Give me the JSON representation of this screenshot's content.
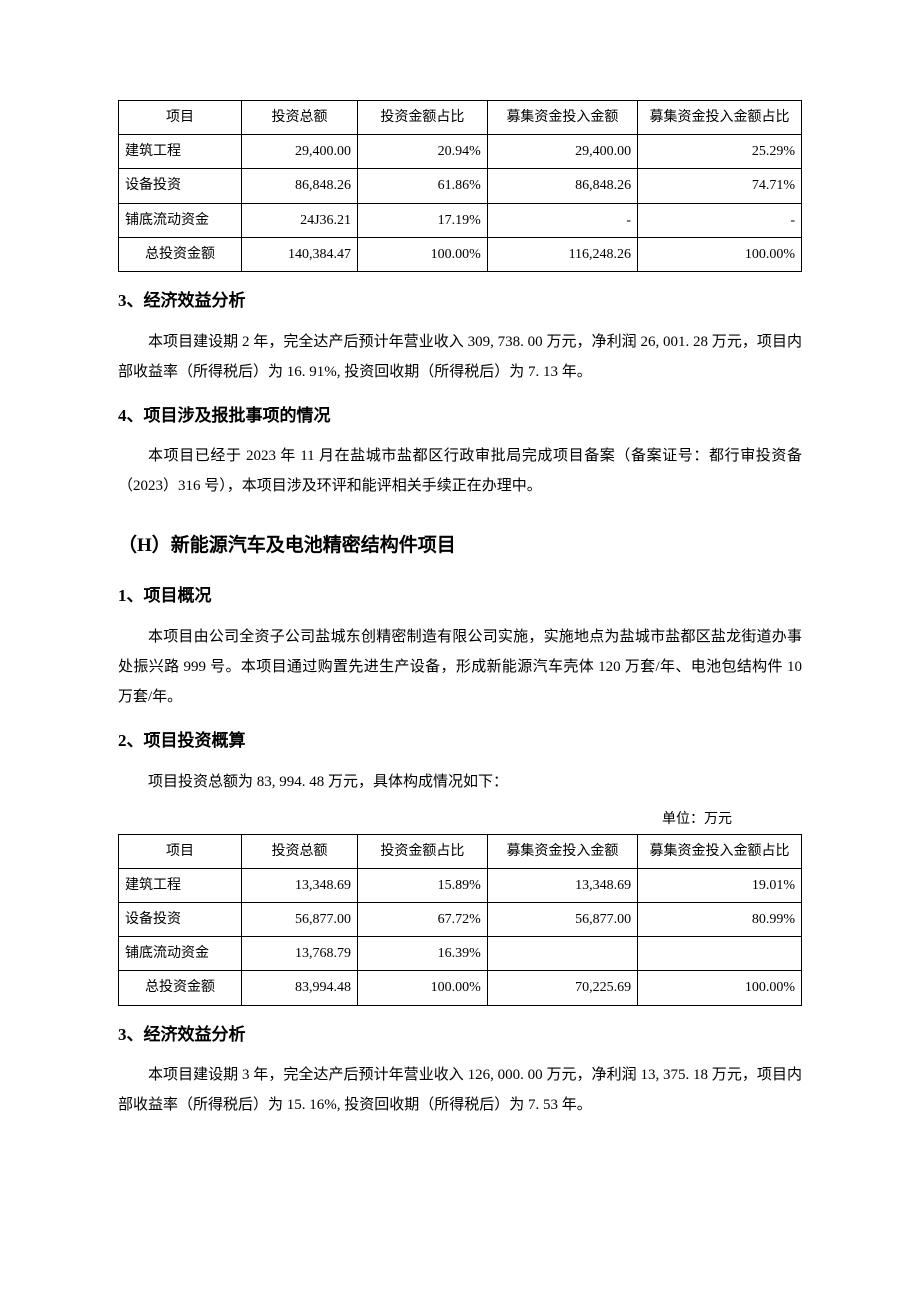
{
  "table1": {
    "headers": [
      "项目",
      "投资总额",
      "投资金额占比",
      "募集资金投入金额",
      "募集资金投入金额占比"
    ],
    "rows": [
      [
        "建筑工程",
        "29,400.00",
        "20.94%",
        "29,400.00",
        "25.29%"
      ],
      [
        "设备投资",
        "86,848.26",
        "61.86%",
        "86,848.26",
        "74.71%"
      ],
      [
        "铺底流动资金",
        "24J36.21",
        "17.19%",
        "-",
        "-"
      ],
      [
        "总投资金额",
        "140,384.47",
        "100.00%",
        "116,248.26",
        "100.00%"
      ]
    ]
  },
  "section3": {
    "title": "3、经济效益分析",
    "p1": "本项目建设期 2 年，完全达产后预计年营业收入 309, 738. 00 万元，净利润 26, 001. 28 万元，项目内部收益率（所得税后）为 16. 91%, 投资回收期（所得税后）为 7. 13 年。"
  },
  "section4": {
    "title": "4、项目涉及报批事项的情况",
    "p1": "本项目已经于 2023 年 11 月在盐城市盐都区行政审批局完成项目备案（备案证号：都行审投资备（2023）316 号），本项目涉及环评和能评相关手续正在办理中。"
  },
  "sectionH": {
    "title": "（H）新能源汽车及电池精密结构件项目"
  },
  "sectionH1": {
    "title": "1、项目概况",
    "p1": "本项目由公司全资子公司盐城东创精密制造有限公司实施，实施地点为盐城市盐都区盐龙街道办事处振兴路 999 号。本项目通过购置先进生产设备，形成新能源汽车壳体 120 万套/年、电池包结构件 10 万套/年。"
  },
  "sectionH2": {
    "title": "2、项目投资概算",
    "p1": "项目投资总额为 83, 994. 48 万元，具体构成情况如下：",
    "unit": "单位：万元"
  },
  "table2": {
    "headers": [
      "项目",
      "投资总额",
      "投资金额占比",
      "募集资金投入金额",
      "募集资金投入金额占比"
    ],
    "rows": [
      [
        "建筑工程",
        "13,348.69",
        "15.89%",
        "13,348.69",
        "19.01%"
      ],
      [
        "设备投资",
        "56,877.00",
        "67.72%",
        "56,877.00",
        "80.99%"
      ],
      [
        "铺底流动资金",
        "13,768.79",
        "16.39%",
        "",
        ""
      ],
      [
        "总投资金额",
        "83,994.48",
        "100.00%",
        "70,225.69",
        "100.00%"
      ]
    ]
  },
  "sectionH3": {
    "title": "3、经济效益分析",
    "p1": "本项目建设期 3 年，完全达产后预计年营业收入 126, 000. 00 万元，净利润 13, 375. 18 万元，项目内部收益率（所得税后）为 15. 16%, 投资回收期（所得税后）为 7. 53 年。"
  }
}
